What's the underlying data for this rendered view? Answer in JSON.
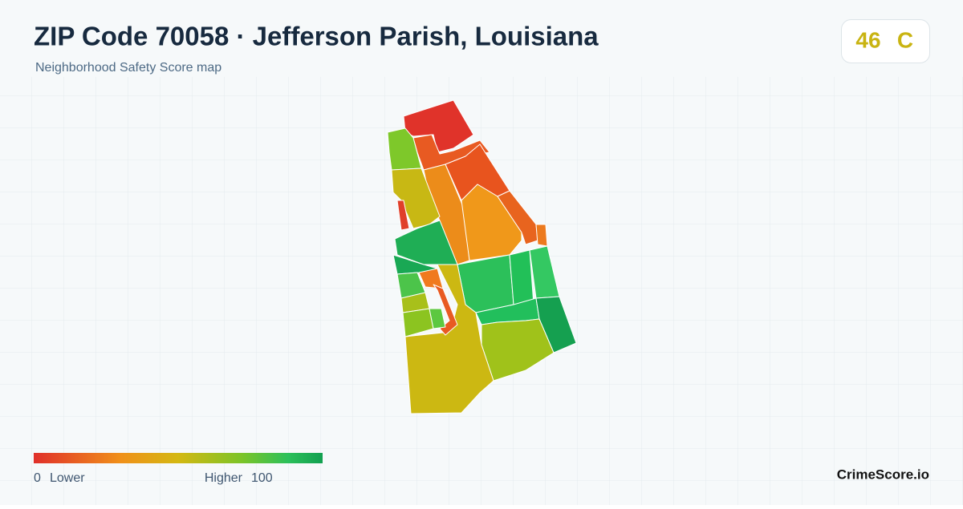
{
  "header": {
    "title": "ZIP Code 70058 · Jefferson Parish, Louisiana",
    "subtitle": "Neighborhood Safety Score map"
  },
  "score": {
    "value": 46,
    "grade": "C"
  },
  "legend": {
    "min": 0,
    "min_label": "Lower",
    "max_label": "Higher",
    "max": 100
  },
  "brand": "CrimeScore.io"
}
